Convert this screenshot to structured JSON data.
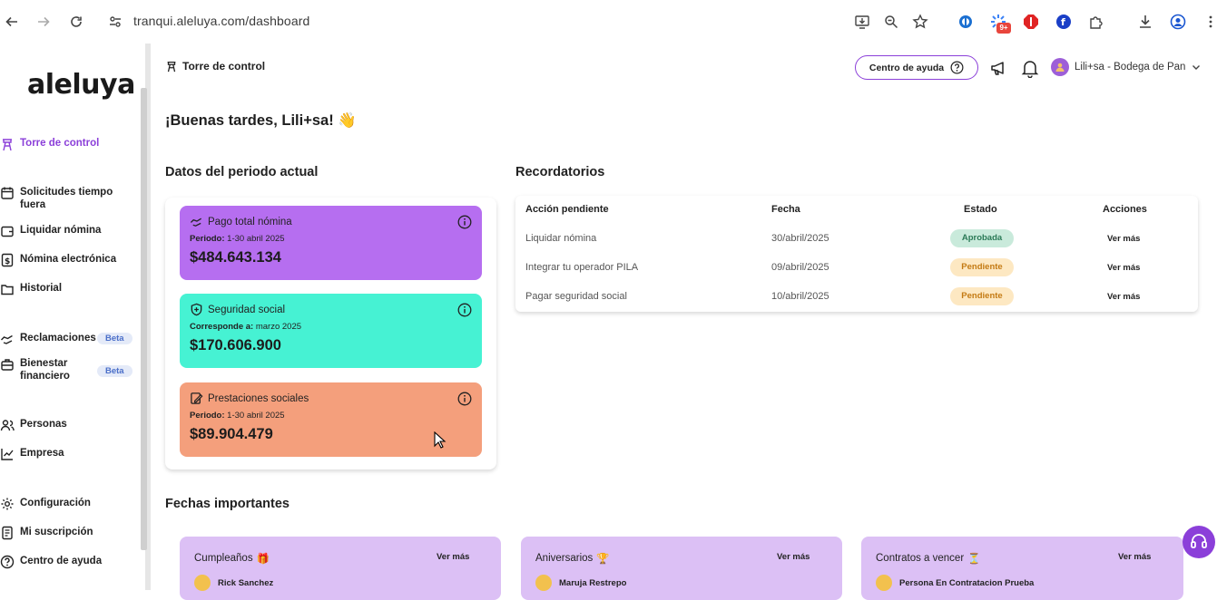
{
  "browser": {
    "url": "tranqui.aleluya.com/dashboard",
    "ext_badge": "9+"
  },
  "sidebar": {
    "logo": "aleluya",
    "items": [
      {
        "label": "Torre de control",
        "icon": "tower-icon"
      },
      {
        "label": "Solicitudes tiempo fuera",
        "icon": "calendar-icon"
      },
      {
        "label": "Liquidar nómina",
        "icon": "wallet-icon"
      },
      {
        "label": "Nómina electrónica",
        "icon": "dollar-doc-icon"
      },
      {
        "label": "Historial",
        "icon": "folder-icon"
      },
      {
        "label": "Reclamaciones",
        "icon": "hand-icon",
        "badge": "Beta"
      },
      {
        "label": "Bienestar financiero",
        "icon": "briefcase-icon",
        "badge": "Beta"
      },
      {
        "label": "Personas",
        "icon": "people-icon"
      },
      {
        "label": "Empresa",
        "icon": "chart-icon"
      },
      {
        "label": "Configuración",
        "icon": "gear-icon"
      },
      {
        "label": "Mi suscripción",
        "icon": "receipt-icon"
      },
      {
        "label": "Centro de ayuda",
        "icon": "help-icon"
      }
    ]
  },
  "header": {
    "breadcrumb": "Torre de control",
    "help_button": "Centro de ayuda",
    "user_name": "Lili+sa - Bodega de Pan"
  },
  "greeting": "¡Buenas tardes, Lili+sa! 👋",
  "period": {
    "title": "Datos del periodo actual",
    "cards": [
      {
        "title": "Pago total nómina",
        "sub_label": "Periodo:",
        "sub_value": "1-30 abril 2025",
        "amount": "$484.643.134",
        "color": "#b66ef0"
      },
      {
        "title": "Seguridad social",
        "sub_label": "Corresponde a:",
        "sub_value": "marzo 2025",
        "amount": "$170.606.900",
        "color": "#46f2d3"
      },
      {
        "title": "Prestaciones sociales",
        "sub_label": "Periodo:",
        "sub_value": "1-30 abril 2025",
        "amount": "$89.904.479",
        "color": "#f49f7c"
      }
    ]
  },
  "reminders": {
    "title": "Recordatorios",
    "columns": [
      "Acción pendiente",
      "Fecha",
      "Estado",
      "Acciones"
    ],
    "rows": [
      {
        "action": "Liquidar nómina",
        "date": "30/abril/2025",
        "status": "Aprobada",
        "link": "Ver más"
      },
      {
        "action": "Integrar tu operador PILA",
        "date": "09/abril/2025",
        "status": "Pendiente",
        "link": "Ver más"
      },
      {
        "action": "Pagar seguridad social",
        "date": "10/abril/2025",
        "status": "Pendiente",
        "link": "Ver más"
      }
    ]
  },
  "dates": {
    "title": "Fechas importantes",
    "cards": [
      {
        "title": "Cumpleaños",
        "emoji": "🎁",
        "link": "Ver más",
        "person": "Rick Sanchez"
      },
      {
        "title": "Aniversarios",
        "emoji": "🏆",
        "link": "Ver más",
        "person": "Maruja Restrepo"
      },
      {
        "title": "Contratos a vencer",
        "emoji": "⏳",
        "link": "Ver más",
        "person": "Persona En Contratacion Prueba"
      }
    ]
  }
}
